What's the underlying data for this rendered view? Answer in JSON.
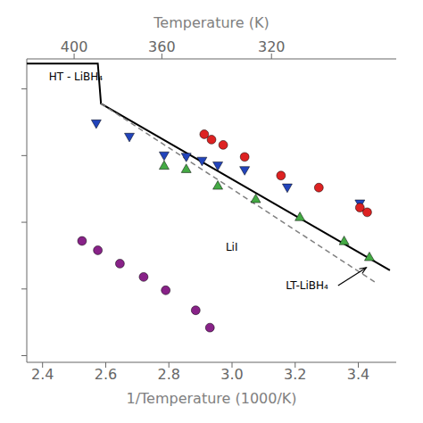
{
  "chart_data": {
    "type": "scatter",
    "xlabel": "1/Temperature (1000/K)",
    "x2label": "Temperature (K)",
    "xlim": [
      2.35,
      3.52
    ],
    "xticks": [
      2.4,
      2.6,
      2.8,
      {
        "value": 3.0,
        "label": "3.0"
      },
      3.2,
      3.4
    ],
    "x2lim": [
      2.35,
      3.52
    ],
    "x2ticks": [
      {
        "value": 2.5,
        "label": "400"
      },
      {
        "value": 2.7777777777777777,
        "label": "360"
      },
      {
        "value": 3.125,
        "label": "320"
      }
    ],
    "ylim": [
      -7.1,
      -2.55
    ],
    "yticks": [
      -7,
      -6,
      -5,
      -4,
      -3
    ],
    "tick_labels": "x",
    "grid": false,
    "series": [
      {
        "type": "line",
        "color": "black",
        "line_style": "solid",
        "x": [
          2.35,
          2.575,
          2.585,
          3.5
        ],
        "values": [
          -2.62,
          -2.62,
          -3.22,
          -5.72
        ]
      },
      {
        "type": "line",
        "color": "gray",
        "line_style": "dashed",
        "x": [
          2.585,
          3.46
        ],
        "values": [
          -3.22,
          -5.92
        ]
      },
      {
        "type": "scatter",
        "marker": "triangle-down",
        "color": "#2244bb",
        "x": [
          2.57,
          2.675,
          2.785,
          2.855,
          2.905,
          2.955,
          3.04,
          3.175,
          3.405
        ],
        "values": [
          -3.52,
          -3.72,
          -4.0,
          -4.02,
          -4.08,
          -4.15,
          -4.22,
          -4.48,
          -4.72
        ]
      },
      {
        "type": "scatter",
        "marker": "triangle-up",
        "color": "#44aa44",
        "x": [
          2.785,
          2.855,
          2.955,
          3.075,
          3.215,
          3.355,
          3.435
        ],
        "values": [
          -4.15,
          -4.2,
          -4.45,
          -4.65,
          -4.92,
          -5.28,
          -5.52
        ]
      },
      {
        "type": "scatter",
        "marker": "circle",
        "color": "#dd2222",
        "x": [
          2.912,
          2.935,
          2.972,
          3.04,
          3.155,
          3.275,
          3.405,
          3.428
        ],
        "values": [
          -3.68,
          -3.76,
          -3.84,
          -4.02,
          -4.3,
          -4.48,
          -4.78,
          -4.85
        ]
      },
      {
        "type": "scatter",
        "marker": "circle",
        "color": "#882288",
        "x": [
          2.525,
          2.575,
          2.645,
          2.72,
          2.79,
          2.885,
          2.93
        ],
        "values": [
          -5.28,
          -5.42,
          -5.62,
          -5.82,
          -6.02,
          -6.32,
          -6.58
        ]
      }
    ],
    "annotations": [
      {
        "text": "HT - LiBH₄",
        "x": 2.42,
        "y": -2.82
      },
      {
        "text": "LiI",
        "x": 2.98,
        "y": -5.38
      },
      {
        "text": "LT-LiBH₄",
        "x": 3.17,
        "y": -5.95,
        "arrow_x": 3.425,
        "arrow_y": -5.68
      }
    ]
  }
}
